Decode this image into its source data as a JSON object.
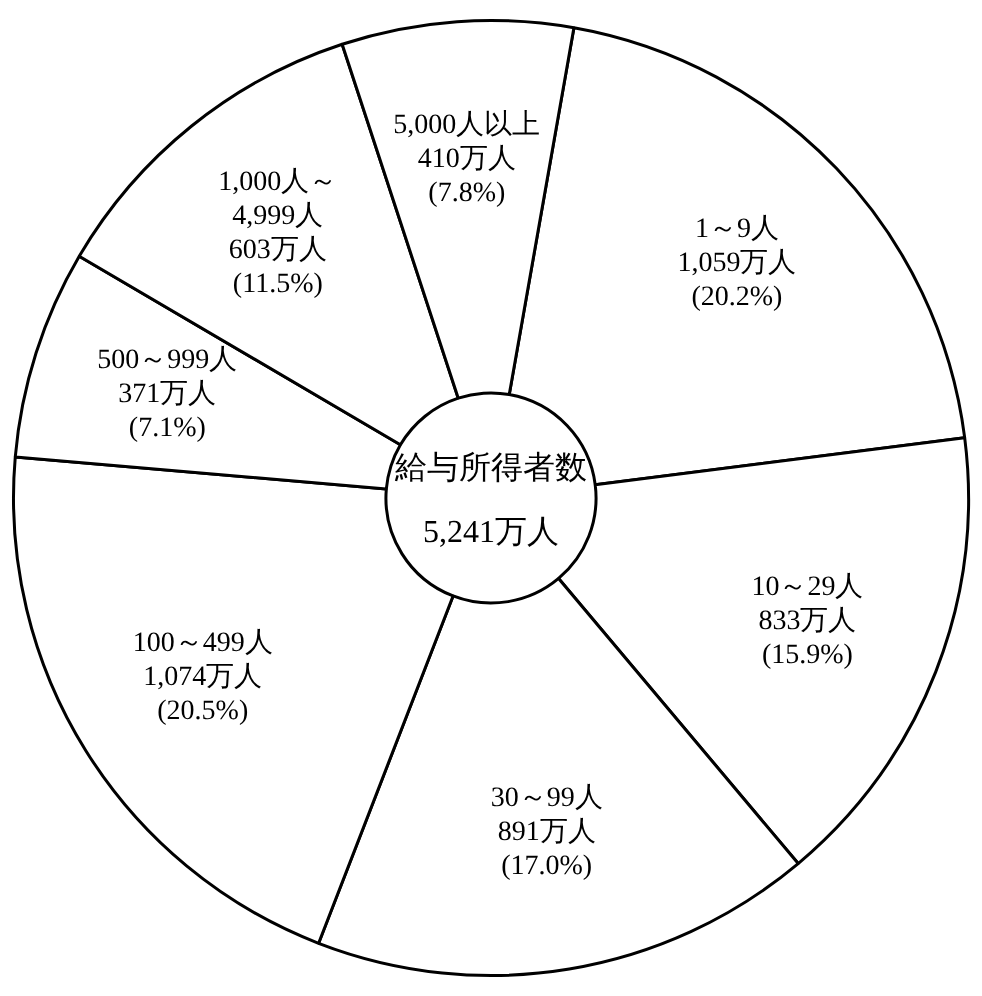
{
  "chart_data": {
    "type": "donut",
    "title": "給与所得者数",
    "subtitle": "5,241万人",
    "categories": [
      "1～9人",
      "10～29人",
      "30～99人",
      "100～499人",
      "500～999人",
      "1,000人～4,999人",
      "5,000人以上"
    ],
    "values": [
      1059,
      833,
      891,
      1074,
      371,
      603,
      410
    ],
    "colors": [
      "#ffffff",
      "#ffffff",
      "#ffffff",
      "#ffffff",
      "#ffffff",
      "#ffffff",
      "#ffffff"
    ],
    "value_labels": [
      "1,059万人\n(20.2%)",
      "833万人\n(15.9%)",
      "891万人\n(17.0%)",
      "1,074万人\n(20.5%)",
      "371万人\n(7.1%)",
      "603万人\n(11.5%)",
      "410万人\n(7.8%)"
    ],
    "legend": false
  }
}
